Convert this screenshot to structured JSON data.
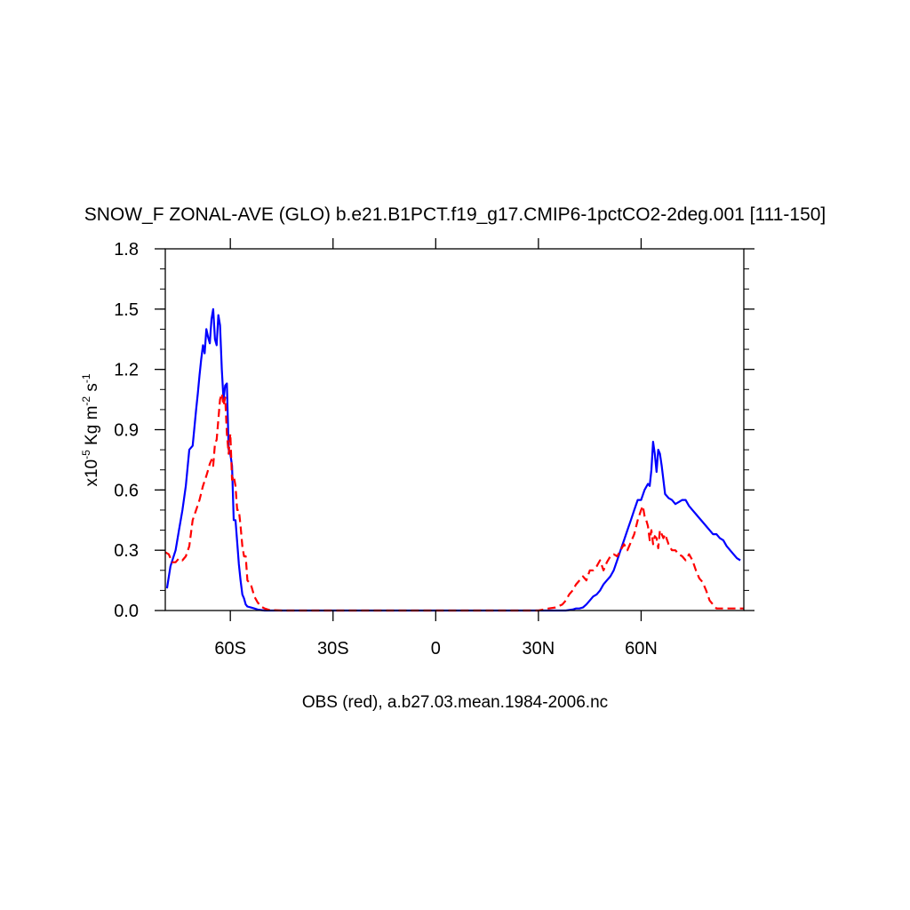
{
  "chart_data": {
    "type": "line",
    "title": "SNOW_F ZONAL-AVE (GLO) b.e21.B1PCT.f19_g17.CMIP6-1pctCO2-2deg.001 [111-150]",
    "subtitle": "OBS (red), a.b27.03.mean.1984-2006.nc",
    "ylabel": {
      "prefix": "x10",
      "exp1": "-5",
      "mid": " Kg m",
      "exp2": "-2",
      "mid2": " s",
      "exp3": "-1"
    },
    "xlabel": "",
    "xlim": [
      -79,
      90
    ],
    "ylim": [
      0,
      1.8
    ],
    "x_ticks": [
      {
        "value": -60,
        "label": "60S"
      },
      {
        "value": -30,
        "label": "30S"
      },
      {
        "value": 0,
        "label": "0"
      },
      {
        "value": 30,
        "label": "30N"
      },
      {
        "value": 60,
        "label": "60N"
      }
    ],
    "y_ticks": [
      {
        "value": 0.0,
        "label": "0.0"
      },
      {
        "value": 0.3,
        "label": "0.3"
      },
      {
        "value": 0.6,
        "label": "0.6"
      },
      {
        "value": 0.9,
        "label": "0.9"
      },
      {
        "value": 1.2,
        "label": "1.2"
      },
      {
        "value": 1.5,
        "label": "1.5"
      },
      {
        "value": 1.8,
        "label": "1.8"
      }
    ],
    "grid": false,
    "series": [
      {
        "color": "#0000ff",
        "dash": "solid",
        "x": [
          -78.5,
          -77.5,
          -76,
          -75,
          -74,
          -73,
          -72,
          -71,
          -70,
          -69.5,
          -69,
          -68.5,
          -68,
          -67.5,
          -67,
          -66.5,
          -66,
          -65.5,
          -65,
          -64.5,
          -64,
          -63.5,
          -63,
          -62.5,
          -62,
          -61.5,
          -61,
          -60.5,
          -60,
          -59.5,
          -59,
          -58.5,
          -58,
          -57.5,
          -57,
          -56.5,
          -56,
          -55.5,
          -55,
          -54,
          -53,
          -52,
          -51,
          -50,
          -45,
          -30,
          -15,
          0,
          15,
          30,
          35,
          38,
          40,
          41,
          42,
          43,
          44,
          45,
          46,
          47,
          48,
          49,
          50,
          51,
          52,
          53,
          54,
          55,
          56,
          57,
          58,
          59,
          60,
          61,
          62,
          62.5,
          63,
          63.5,
          64,
          64.5,
          65,
          65.5,
          66,
          66.5,
          67,
          68,
          69,
          70,
          71,
          72,
          73,
          74,
          75,
          76,
          77,
          78,
          79,
          80,
          81,
          82,
          83,
          84,
          85,
          86,
          87,
          88,
          89
        ],
        "y": [
          0.11,
          0.22,
          0.3,
          0.4,
          0.5,
          0.62,
          0.8,
          0.82,
          1.0,
          1.08,
          1.17,
          1.25,
          1.32,
          1.28,
          1.4,
          1.36,
          1.33,
          1.45,
          1.5,
          1.35,
          1.32,
          1.47,
          1.42,
          1.2,
          1.05,
          1.12,
          1.13,
          0.8,
          0.78,
          0.72,
          0.45,
          0.45,
          0.34,
          0.23,
          0.15,
          0.08,
          0.06,
          0.03,
          0.02,
          0.015,
          0.01,
          0.005,
          0.002,
          0.0,
          0.0,
          0.0,
          0.0,
          0.0,
          0.0,
          0.0,
          0.0,
          0.0,
          0.005,
          0.01,
          0.01,
          0.015,
          0.03,
          0.05,
          0.07,
          0.08,
          0.1,
          0.13,
          0.15,
          0.17,
          0.2,
          0.25,
          0.3,
          0.35,
          0.4,
          0.45,
          0.5,
          0.55,
          0.55,
          0.6,
          0.63,
          0.62,
          0.7,
          0.84,
          0.78,
          0.69,
          0.8,
          0.78,
          0.72,
          0.65,
          0.58,
          0.56,
          0.55,
          0.53,
          0.54,
          0.55,
          0.55,
          0.52,
          0.5,
          0.48,
          0.46,
          0.44,
          0.42,
          0.4,
          0.38,
          0.38,
          0.36,
          0.35,
          0.32,
          0.3,
          0.28,
          0.26,
          0.25
        ]
      },
      {
        "color": "#ff0000",
        "dash": "dashed",
        "x": [
          -79,
          -78,
          -77,
          -76,
          -75,
          -74,
          -73,
          -72,
          -71,
          -70,
          -69,
          -68,
          -67,
          -66.5,
          -66,
          -65.5,
          -65,
          -64.5,
          -64,
          -63.5,
          -63,
          -62.5,
          -62,
          -61.5,
          -61,
          -60.5,
          -60,
          -59.5,
          -59,
          -58.5,
          -58,
          -57.5,
          -57,
          -56.5,
          -56,
          -55.5,
          -55,
          -54,
          -53,
          -52,
          -51,
          -50,
          -49,
          -48,
          -45,
          -30,
          -15,
          0,
          15,
          30,
          33,
          35,
          37,
          38,
          39,
          40,
          41,
          42,
          43,
          44,
          45,
          46,
          47,
          48,
          49,
          50,
          51,
          52,
          53,
          54,
          55,
          56,
          57,
          58,
          59,
          60,
          60.5,
          61,
          61.5,
          62,
          62.5,
          63,
          63.5,
          64,
          64.5,
          65,
          65.5,
          66,
          66.5,
          67,
          68,
          69,
          70,
          71,
          72,
          73,
          74,
          75,
          76,
          77,
          78,
          79,
          80,
          81,
          82,
          83,
          84,
          85,
          86,
          87,
          88,
          89,
          90
        ],
        "y": [
          0.29,
          0.28,
          0.24,
          0.24,
          0.26,
          0.25,
          0.27,
          0.32,
          0.45,
          0.5,
          0.55,
          0.62,
          0.67,
          0.7,
          0.73,
          0.75,
          0.72,
          0.83,
          0.85,
          0.95,
          1.05,
          1.08,
          1.02,
          1.06,
          0.88,
          0.78,
          0.88,
          0.65,
          0.67,
          0.62,
          0.5,
          0.5,
          0.42,
          0.32,
          0.27,
          0.27,
          0.15,
          0.13,
          0.07,
          0.04,
          0.02,
          0.01,
          0.005,
          0.002,
          0.0,
          0.0,
          0.0,
          0.0,
          0.0,
          0.0,
          0.01,
          0.015,
          0.03,
          0.05,
          0.08,
          0.1,
          0.13,
          0.15,
          0.17,
          0.15,
          0.2,
          0.2,
          0.22,
          0.25,
          0.2,
          0.24,
          0.27,
          0.28,
          0.27,
          0.3,
          0.33,
          0.3,
          0.34,
          0.38,
          0.45,
          0.5,
          0.52,
          0.47,
          0.45,
          0.42,
          0.35,
          0.4,
          0.33,
          0.37,
          0.36,
          0.31,
          0.4,
          0.38,
          0.36,
          0.38,
          0.33,
          0.3,
          0.3,
          0.28,
          0.27,
          0.25,
          0.28,
          0.25,
          0.2,
          0.16,
          0.14,
          0.1,
          0.05,
          0.03,
          0.01,
          0.01,
          0.01,
          0.01,
          0.01,
          0.01,
          0.01,
          0.01,
          0.01
        ]
      }
    ]
  }
}
